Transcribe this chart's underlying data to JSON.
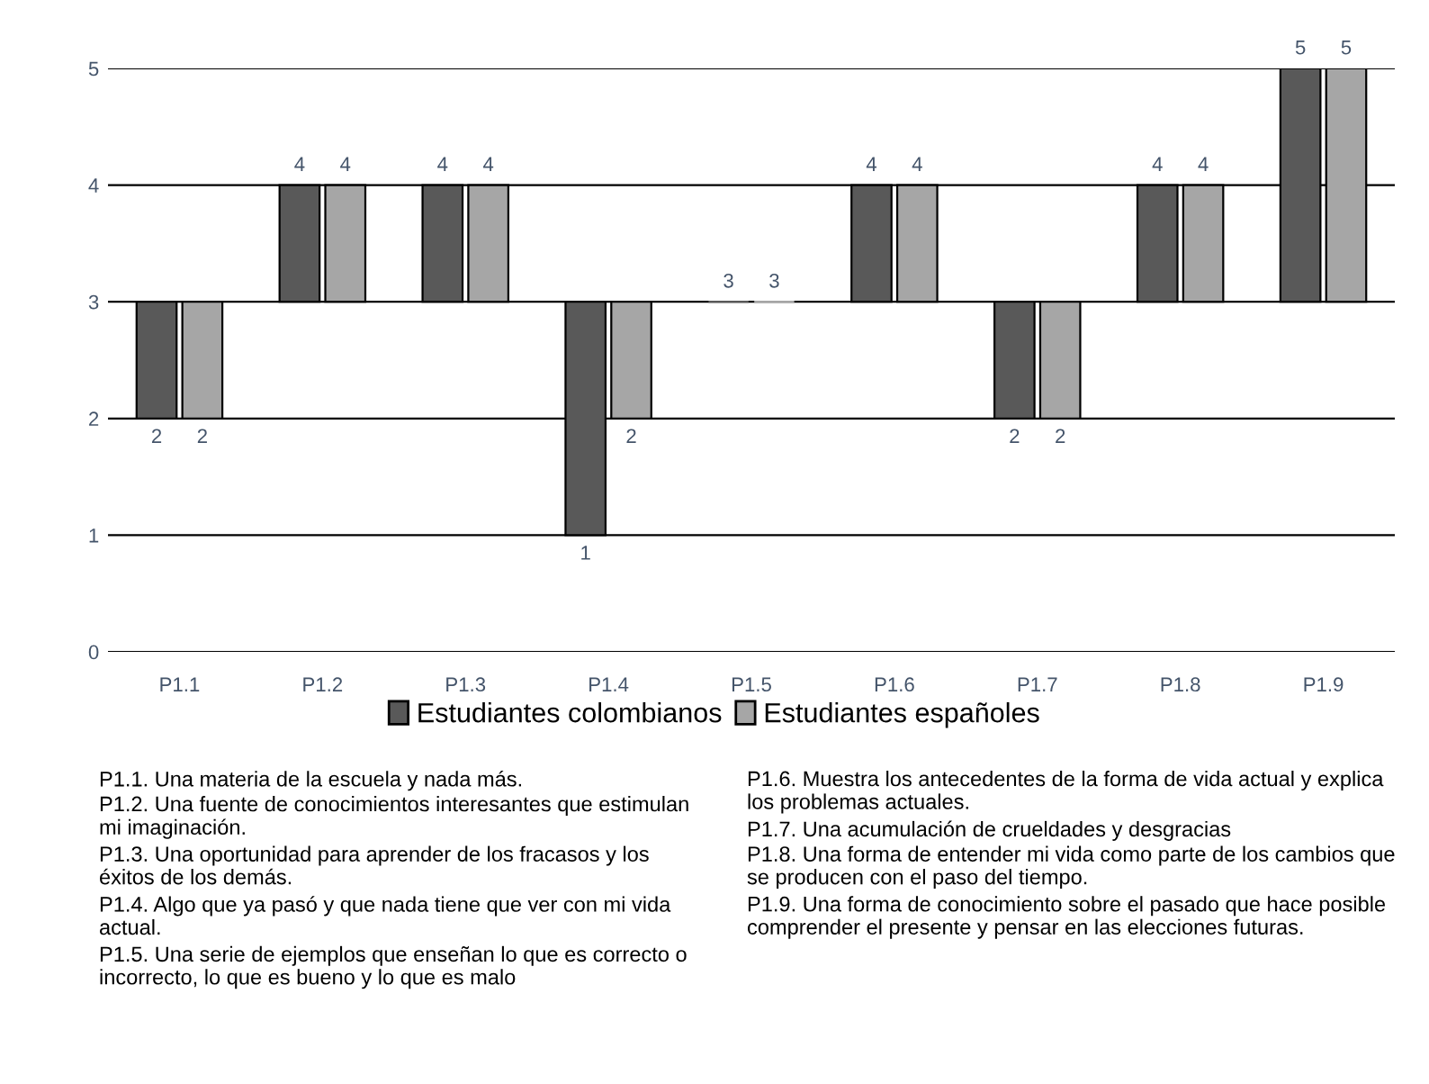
{
  "chart_data": {
    "type": "bar",
    "categories": [
      "P1.1",
      "P1.2",
      "P1.3",
      "P1.4",
      "P1.5",
      "P1.6",
      "P1.7",
      "P1.8",
      "P1.9"
    ],
    "series": [
      {
        "name": "Estudiantes colombianos",
        "color": "#595959",
        "base": [
          3,
          3,
          3,
          3,
          3,
          3,
          3,
          3,
          3
        ],
        "values": [
          -1,
          1,
          1,
          -2,
          0,
          1,
          -1,
          1,
          2
        ],
        "value_labels": [
          "2",
          "4",
          "4",
          "1",
          "3",
          "4",
          "2",
          "4",
          "5"
        ]
      },
      {
        "name": "Estudiantes españoles",
        "color": "#a6a6a6",
        "base": [
          3,
          3,
          3,
          3,
          3,
          3,
          3,
          3,
          3
        ],
        "values": [
          -1,
          1,
          1,
          -1,
          0,
          1,
          -1,
          1,
          2
        ],
        "value_labels": [
          "2",
          "4",
          "4",
          "2",
          "3",
          "4",
          "2",
          "4",
          "5"
        ]
      }
    ],
    "ylim": [
      0,
      5
    ],
    "yticks": [
      0,
      1,
      2,
      3,
      4,
      5
    ],
    "grid": "y",
    "legend": "bottom",
    "annotations": [
      "P1.1. Una materia de la escuela y nada más.",
      "P1.2. Una fuente de conocimientos interesantes que estimulan mi imaginación.",
      "P1.3. Una oportunidad para aprender de los fracasos y los éxitos de los demás.",
      "P1.4. Algo que ya pasó y que nada tiene que ver con mi vida actual.",
      "P1.5. Una serie de ejemplos que enseñan lo que es correcto o incorrecto, lo que es bueno y lo que es malo",
      "P1.6. Muestra los antecedentes de la forma de vida actual y explica los problemas actuales.",
      "P1.7. Una acumulación de crueldades y desgracias",
      "P1.8. Una forma de entender mi vida como parte de los cambios que se producen con el paso del tiempo.",
      "P1.9. Una forma de conocimiento sobre el pasado que hace posible comprender el presente y pensar en las elecciones futuras."
    ]
  }
}
